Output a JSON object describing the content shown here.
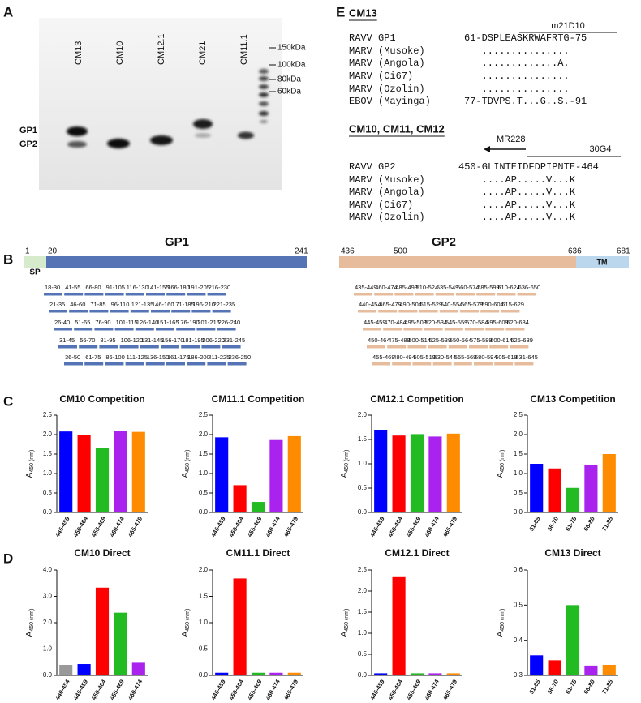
{
  "panel_labels": [
    "A",
    "B",
    "C",
    "D",
    "E"
  ],
  "blot": {
    "lanes": [
      "CM13",
      "CM10",
      "CM12.1",
      "CM21",
      "CM11.1"
    ],
    "markers": [
      "150kDa",
      "100kDa",
      "80kDa",
      "60kDa"
    ],
    "bands": [
      "GP1",
      "GP2"
    ]
  },
  "domain": {
    "labels": [
      "SP",
      "GP1",
      "GP2",
      "TM"
    ],
    "positions": [
      1,
      20,
      241,
      436,
      500,
      636,
      681
    ],
    "gp1_peptides": [
      [
        "18-30",
        "41-55",
        "66-80",
        "91-105",
        "116-130",
        "141-155",
        "166-180",
        "191-205",
        "216-230"
      ],
      [
        "21-35",
        "46-60",
        "71-85",
        "96-110",
        "121-135",
        "146-160",
        "171-185",
        "196-210",
        "221-235"
      ],
      [
        "26-40",
        "51-65",
        "76-90",
        "101-115",
        "126-140",
        "151-165",
        "176-190",
        "201-215",
        "226-240"
      ],
      [
        "31-45",
        "56-70",
        "81-95",
        "106-120",
        "131-145",
        "156-170",
        "181-195",
        "206-220",
        "231-245"
      ],
      [
        "36-50",
        "61-75",
        "86-100",
        "111-125",
        "136-150",
        "161-175",
        "186-200",
        "211-225",
        "236-250"
      ]
    ],
    "gp2_peptides": [
      [
        "435-449",
        "460-474",
        "485-499",
        "510-524",
        "535-549",
        "560-574",
        "585-599",
        "610-624",
        "636-650"
      ],
      [
        "440-454",
        "465-479",
        "490-504",
        "515-529",
        "540-554",
        "565-579",
        "590-604",
        "615-629"
      ],
      [
        "445-459",
        "470-484",
        "495-509",
        "520-534",
        "545-559",
        "570-584",
        "595-609",
        "620-634"
      ],
      [
        "450-464",
        "475-489",
        "500-514",
        "525-539",
        "550-564",
        "575-589",
        "600-614",
        "625-639"
      ],
      [
        "455-469",
        "480-494",
        "505-519",
        "530-544",
        "555-569",
        "580-594",
        "605-619",
        "631-645"
      ]
    ]
  },
  "alignment": {
    "groups": [
      {
        "title": "CM13",
        "annotations": [
          "m21D10"
        ],
        "rows": [
          {
            "name": "RAVV GP1",
            "seq": "61-DSPLEASKRWAFRTG-75"
          },
          {
            "name": "MARV (Musoke)",
            "seq": "..............."
          },
          {
            "name": "MARV (Angola)",
            "seq": ".............A."
          },
          {
            "name": "MARV (Ci67)",
            "seq": "..............."
          },
          {
            "name": "MARV (Ozolin)",
            "seq": "..............."
          },
          {
            "name": "EBOV (Mayinga)",
            "seq": "77-TDVPS.T...G..S.-91"
          }
        ]
      },
      {
        "title": "CM10, CM11, CM12",
        "annotations": [
          "MR228",
          "30G4"
        ],
        "rows": [
          {
            "name": "RAVV GP2",
            "seq": "450-GLINTEIDFDPIPNTE-464"
          },
          {
            "name": "MARV (Musoke)",
            "seq": "....AP.....V...K"
          },
          {
            "name": "MARV (Angola)",
            "seq": "....AP.....V...K"
          },
          {
            "name": "MARV (Ci67)",
            "seq": "....AP.....V...K"
          },
          {
            "name": "MARV (Ozolin)",
            "seq": "....AP.....V...K"
          }
        ]
      }
    ]
  },
  "chart_data": [
    {
      "type": "bar",
      "title": "CM10 Competition",
      "y_label": {
        "main": "A",
        "sub": "450 (nm)"
      },
      "categories": [
        "445-459",
        "450-464",
        "455-469",
        "460-474",
        "465-479"
      ],
      "values": [
        2.08,
        1.98,
        1.65,
        2.1,
        2.07
      ],
      "colors": [
        "#0000ff",
        "#ff0000",
        "#22bb22",
        "#aa22ee",
        "#ff8c00"
      ],
      "ylim": [
        0,
        2.5
      ],
      "yticks": [
        {
          "value": 0,
          "label": "0.0"
        },
        0.5,
        {
          "value": 1,
          "label": "1.0"
        },
        1.5,
        {
          "value": 2,
          "label": "2.0"
        },
        2.5
      ]
    },
    {
      "type": "bar",
      "title": "CM11.1 Competition",
      "y_label": {
        "main": "A",
        "sub": "450 (nm)"
      },
      "categories": [
        "445-459",
        "450-464",
        "455-469",
        "460-474",
        "465-479"
      ],
      "values": [
        1.93,
        0.7,
        0.27,
        1.86,
        1.96
      ],
      "colors": [
        "#0000ff",
        "#ff0000",
        "#22bb22",
        "#aa22ee",
        "#ff8c00"
      ],
      "ylim": [
        0,
        2.5
      ],
      "yticks": [
        {
          "value": 0,
          "label": "0.0"
        },
        0.5,
        {
          "value": 1,
          "label": "1.0"
        },
        1.5,
        {
          "value": 2,
          "label": "2.0"
        },
        2.5
      ]
    },
    {
      "type": "bar",
      "title": "CM12.1 Competition",
      "y_label": {
        "main": "A",
        "sub": "450 (nm)"
      },
      "categories": [
        "445-459",
        "450-464",
        "455-469",
        "460-474",
        "465-479"
      ],
      "values": [
        1.7,
        1.58,
        1.61,
        1.56,
        1.62
      ],
      "colors": [
        "#0000ff",
        "#ff0000",
        "#22bb22",
        "#aa22ee",
        "#ff8c00"
      ],
      "ylim": [
        0,
        2
      ],
      "yticks": [
        {
          "value": 0,
          "label": "0.0"
        },
        0.5,
        {
          "value": 1,
          "label": "1.0"
        },
        1.5,
        {
          "value": 2,
          "label": "2.0"
        }
      ]
    },
    {
      "type": "bar",
      "title": "CM13 Competition",
      "y_label": {
        "main": "A",
        "sub": "450 (nm)"
      },
      "categories": [
        "51-65",
        "56-70",
        "61-75",
        "66-80",
        "71-85"
      ],
      "values": [
        1.25,
        1.13,
        0.63,
        1.23,
        1.5
      ],
      "colors": [
        "#0000ff",
        "#ff0000",
        "#22bb22",
        "#aa22ee",
        "#ff8c00"
      ],
      "ylim": [
        0,
        2.5
      ],
      "yticks": [
        {
          "value": 0,
          "label": "0.0"
        },
        0.5,
        {
          "value": 1,
          "label": "1.0"
        },
        1.5,
        {
          "value": 2,
          "label": "2.0"
        },
        2.5
      ]
    },
    {
      "type": "bar",
      "title": "CM10 Direct",
      "y_label": {
        "main": "A",
        "sub": "450 (nm)"
      },
      "categories": [
        "440-454",
        "445-459",
        "450-464",
        "455-469",
        "460-474"
      ],
      "values": [
        0.4,
        0.43,
        3.33,
        2.38,
        0.48
      ],
      "colors": [
        "#999999",
        "#0000ff",
        "#ff0000",
        "#22bb22",
        "#aa22ee"
      ],
      "ylim": [
        0,
        4
      ],
      "yticks": [
        {
          "value": 0,
          "label": "0.0"
        },
        {
          "value": 1,
          "label": "1.0"
        },
        {
          "value": 2,
          "label": "2.0"
        },
        {
          "value": 3,
          "label": "3.0"
        },
        {
          "value": 4,
          "label": "4.0"
        }
      ]
    },
    {
      "type": "bar",
      "title": "CM11.1 Direct",
      "y_label": {
        "main": "A",
        "sub": "450 (nm)"
      },
      "categories": [
        "445-459",
        "450-464",
        "455-469",
        "460-474",
        "465-479"
      ],
      "values": [
        0.05,
        1.84,
        0.05,
        0.05,
        0.05
      ],
      "colors": [
        "#0000ff",
        "#ff0000",
        "#22bb22",
        "#aa22ee",
        "#ff8c00"
      ],
      "ylim": [
        0,
        2
      ],
      "yticks": [
        {
          "value": 0,
          "label": "0.0"
        },
        0.5,
        {
          "value": 1,
          "label": "1.0"
        },
        1.5,
        {
          "value": 2,
          "label": "2.0"
        }
      ]
    },
    {
      "type": "bar",
      "title": "CM12.1 Direct",
      "y_label": {
        "main": "A",
        "sub": "450 (nm)"
      },
      "categories": [
        "445-459",
        "450-464",
        "455-469",
        "460-474",
        "465-479"
      ],
      "values": [
        0.05,
        2.35,
        0.05,
        0.05,
        0.05
      ],
      "colors": [
        "#0000ff",
        "#ff0000",
        "#22bb22",
        "#aa22ee",
        "#ff8c00"
      ],
      "ylim": [
        0,
        2.5
      ],
      "yticks": [
        {
          "value": 0,
          "label": "0.0"
        },
        0.5,
        {
          "value": 1,
          "label": "1.0"
        },
        1.5,
        {
          "value": 2,
          "label": "2.0"
        },
        2.5
      ]
    },
    {
      "type": "bar",
      "title": "CM13 Direct",
      "y_label": {
        "main": "A",
        "sub": "450 (nm)"
      },
      "categories": [
        "51-65",
        "56-70",
        "61-75",
        "66-80",
        "71-85"
      ],
      "values": [
        0.357,
        0.343,
        0.5,
        0.328,
        0.33
      ],
      "colors": [
        "#0000ff",
        "#ff0000",
        "#22bb22",
        "#aa22ee",
        "#ff8c00"
      ],
      "ylim": [
        0.3,
        0.6
      ],
      "yticks": [
        0.3,
        0.4,
        0.5,
        0.6
      ]
    }
  ]
}
